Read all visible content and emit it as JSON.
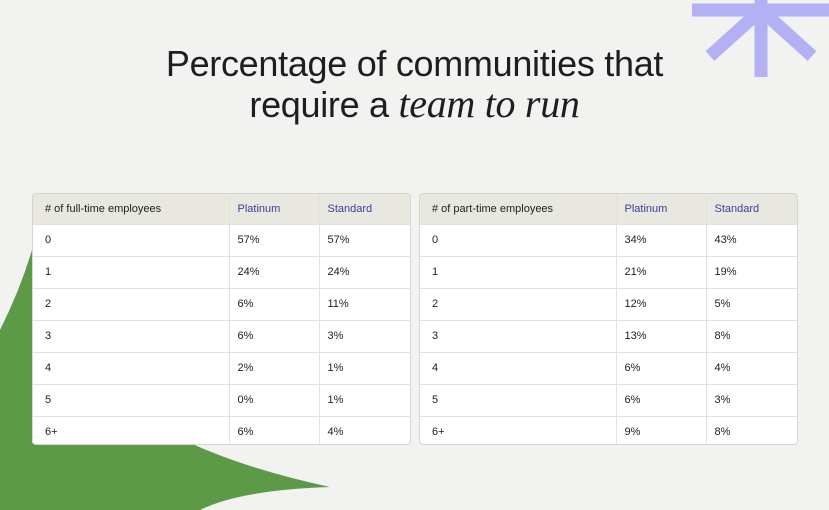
{
  "title": {
    "line1": "Percentage of communities that",
    "line2_plain": "require a ",
    "line2_italic": "team to run"
  },
  "colors": {
    "background": "#f2f2f0",
    "green_shape": "#5c9a48",
    "star": "#b3b0f3",
    "header_bg": "#e8e8e0",
    "plan_label": "#3c3c9e"
  },
  "decor": {
    "star_icon": "asterisk-icon",
    "green_shape": "green-blob-shape"
  },
  "full_time_table": {
    "headers": [
      "# of full-time employees",
      "Platinum",
      "Standard"
    ],
    "rows": [
      [
        "0",
        "57%",
        "57%"
      ],
      [
        "1",
        "24%",
        "24%"
      ],
      [
        "2",
        "6%",
        "11%"
      ],
      [
        "3",
        "6%",
        "3%"
      ],
      [
        "4",
        "2%",
        "1%"
      ],
      [
        "5",
        "0%",
        "1%"
      ],
      [
        "6+",
        "6%",
        "4%"
      ]
    ]
  },
  "part_time_table": {
    "headers": [
      "# of part-time employees",
      "Platinum",
      "Standard"
    ],
    "rows": [
      [
        "0",
        "34%",
        "43%"
      ],
      [
        "1",
        "21%",
        "19%"
      ],
      [
        "2",
        "12%",
        "5%"
      ],
      [
        "3",
        "13%",
        "8%"
      ],
      [
        "4",
        "6%",
        "4%"
      ],
      [
        "5",
        "6%",
        "3%"
      ],
      [
        "6+",
        "9%",
        "8%"
      ]
    ]
  }
}
